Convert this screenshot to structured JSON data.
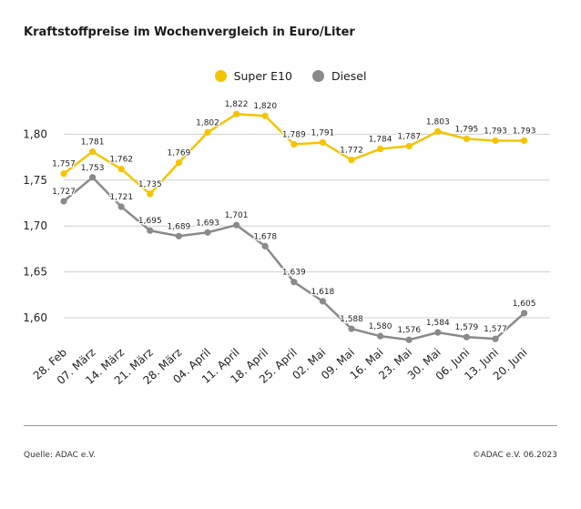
{
  "title": "Kraftstoffpreise im Wochenvergleich in Euro/Liter",
  "source": "Quelle: ADAC e.V.",
  "copyright": "©ADAC e.V. 06.2023",
  "colors": {
    "super": "#f5c400",
    "diesel": "#8a8a8a",
    "grid": "#cfcfcf",
    "axis": "#9a9a9a"
  },
  "chart_data": {
    "type": "line",
    "categories": [
      "28. Feb",
      "07. März",
      "14. März",
      "21. März",
      "28. März",
      "04. April",
      "11. April",
      "18. April",
      "25. April",
      "02. Mai",
      "09. Mai",
      "16. Mai",
      "23. Mai",
      "30. Mai",
      "06. Juni",
      "13. Juni",
      "20. Juni"
    ],
    "yticks": [
      "1,80",
      "1,75",
      "1,70",
      "1,65",
      "1,60"
    ],
    "ytick_values": [
      1.8,
      1.75,
      1.7,
      1.65,
      1.6
    ],
    "ylim": [
      1.55,
      1.85
    ],
    "grid": true,
    "legend_position": "top-center",
    "series": [
      {
        "name": "Super E10",
        "values": [
          1.757,
          1.781,
          1.762,
          1.735,
          1.769,
          1.802,
          1.822,
          1.82,
          1.789,
          1.791,
          1.772,
          1.784,
          1.787,
          1.803,
          1.795,
          1.793,
          1.793
        ],
        "labels": [
          "1,757",
          "1,781",
          "1,762",
          "1,735",
          "1,769",
          "1,802",
          "1,822",
          "1,820",
          "1,789",
          "1,791",
          "1,772",
          "1,784",
          "1,787",
          "1,803",
          "1,795",
          "1,793",
          "1,793"
        ]
      },
      {
        "name": "Diesel",
        "values": [
          1.727,
          1.753,
          1.721,
          1.695,
          1.689,
          1.693,
          1.701,
          1.678,
          1.639,
          1.618,
          1.588,
          1.58,
          1.576,
          1.584,
          1.579,
          1.577,
          1.605
        ],
        "labels": [
          "1,727",
          "1,753",
          "1,721",
          "1,695",
          "1,689",
          "1,693",
          "1,701",
          "1,678",
          "1,639",
          "1,618",
          "1,588",
          "1,580",
          "1,576",
          "1,584",
          "1,579",
          "1,577",
          "1,605"
        ]
      }
    ]
  }
}
